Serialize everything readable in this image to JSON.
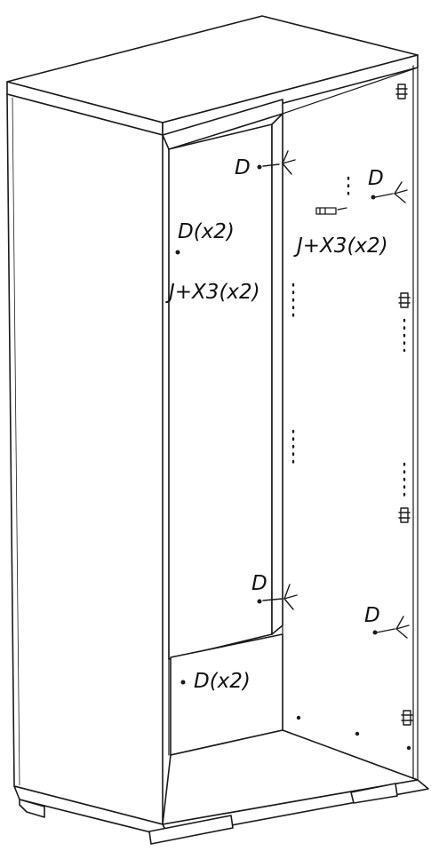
{
  "labels": {
    "d_top_left": "D",
    "d_top_right": "D",
    "d_left_x2": "D(x2)",
    "j_x3_left": "J+X3(x2)",
    "j_x3_right": "J+X3(x2)",
    "d_mid_left": "D",
    "d_mid_right": "D",
    "d_bottom_x2": "D(x2)"
  },
  "colors": {
    "stroke": "#1a1a1a",
    "fill": "#ffffff"
  }
}
